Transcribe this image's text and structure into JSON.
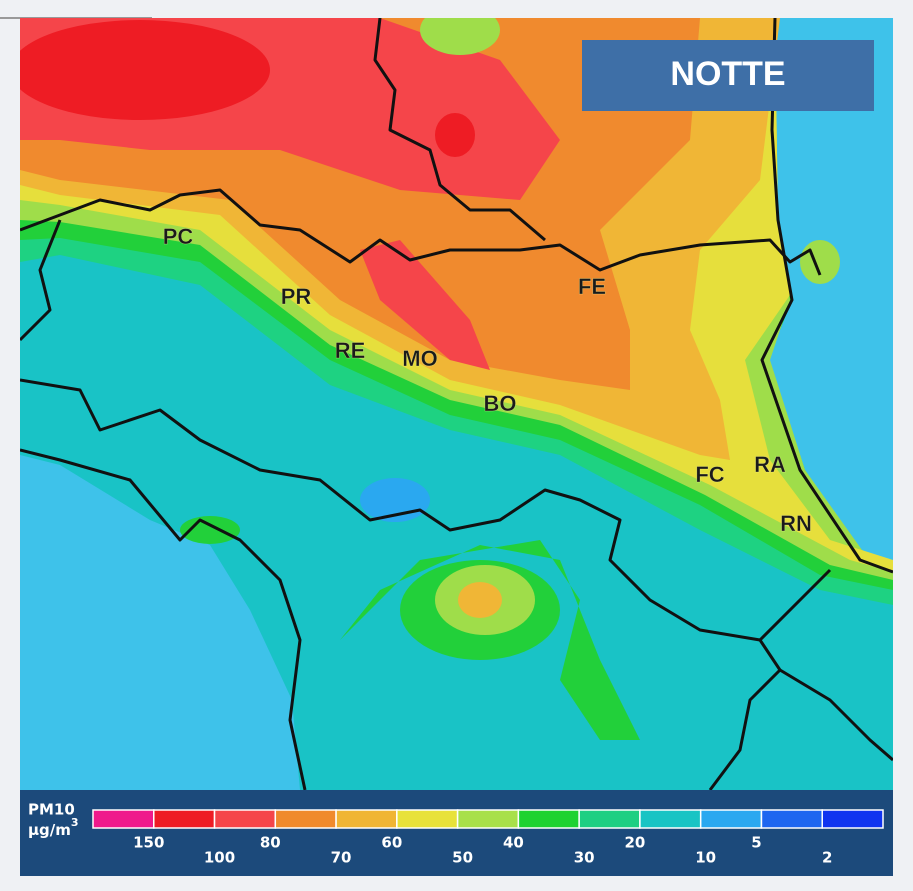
{
  "badge": "NOTTE",
  "cities": [
    "PC",
    "PR",
    "RE",
    "MO",
    "BO",
    "FE",
    "FC",
    "RA",
    "RN"
  ],
  "legend": {
    "title": "PM10",
    "unit_base": "µg/m",
    "unit_exp": "3",
    "colors": [
      "#ef1a8c",
      "#ee1c24",
      "#f5454a",
      "#f08a2c",
      "#f0b534",
      "#e8e23a",
      "#a8e04a",
      "#1ed230",
      "#1ecf82",
      "#18c4c4",
      "#2aa8f0",
      "#1e66f0",
      "#1034f0"
    ],
    "labels": [
      150,
      100,
      80,
      70,
      60,
      50,
      40,
      30,
      20,
      10,
      5,
      2
    ]
  }
}
